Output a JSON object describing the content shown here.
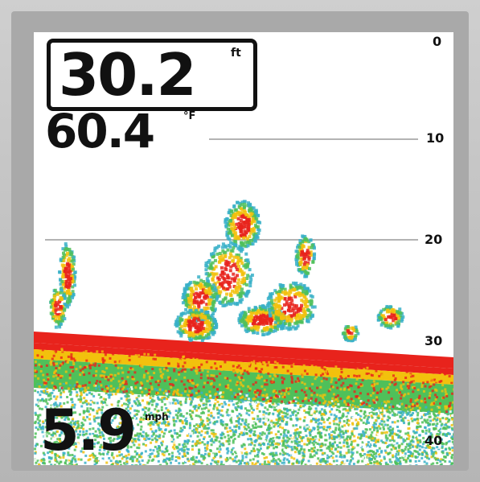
{
  "readouts": {
    "depth_value": "30.2",
    "depth_unit": "ft",
    "temperature_value": "60.4",
    "temperature_unit": "°F",
    "speed_value": "5.9",
    "speed_unit": "mph"
  },
  "depth_scale": {
    "labels": [
      "0",
      "10",
      "20",
      "30",
      "40"
    ],
    "values": [
      0,
      10,
      20,
      30,
      40
    ],
    "range": [
      0,
      40
    ]
  },
  "bottom_depth_ft": 30.2,
  "colors": {
    "strong_return": "#e8231c",
    "medium_return": "#f2c10d",
    "weak_return": "#4fc05a",
    "faint_return": "#38b0c8",
    "screen_background": "#ffffff",
    "scale_line": "#9a9a9a"
  }
}
